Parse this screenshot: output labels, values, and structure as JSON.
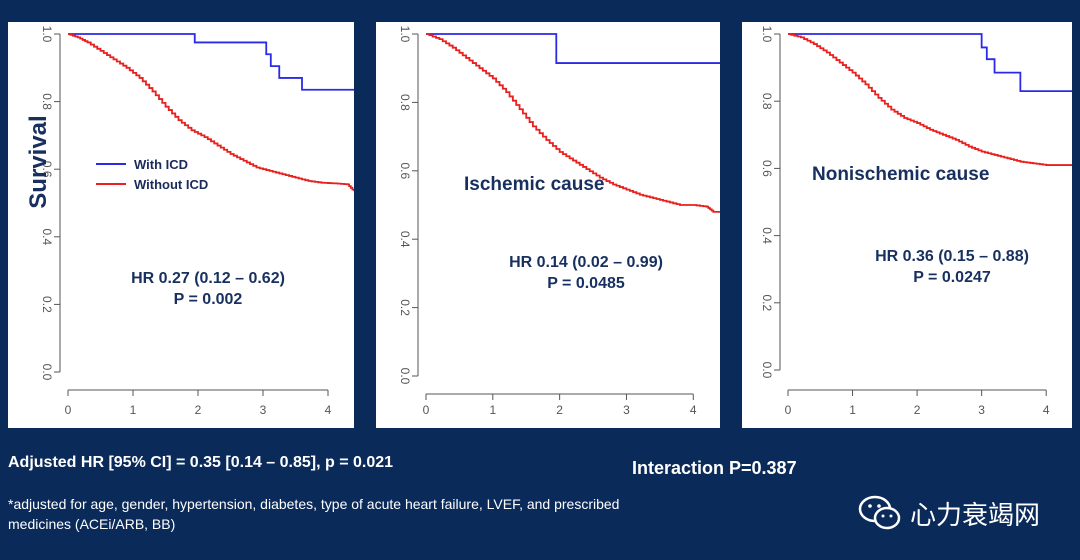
{
  "ylabel": "Survival",
  "legend": [
    {
      "label": "With ICD",
      "color": "#2a2ae8"
    },
    {
      "label": "Without ICD",
      "color": "#e8201e"
    }
  ],
  "chart_data": [
    {
      "type": "line",
      "title": "",
      "hr_line": "HR 0.27 (0.12 – 0.62)",
      "p_line": "P = 0.002",
      "x_ticks": [
        "0",
        "1",
        "2",
        "3",
        "4"
      ],
      "y_ticks": [
        "0.0",
        "0.2",
        "0.4",
        "0.6",
        "0.8",
        "1.0"
      ],
      "xlim": [
        0,
        4.4
      ],
      "ylim": [
        0,
        1.0
      ],
      "series": [
        {
          "name": "With ICD",
          "color": "#2a2ae8",
          "step": true,
          "x": [
            0,
            1.95,
            3.0,
            3.05,
            3.12,
            3.25,
            3.6,
            4.4
          ],
          "y": [
            1.0,
            0.975,
            0.975,
            0.94,
            0.905,
            0.87,
            0.835,
            0.835
          ]
        },
        {
          "name": "Without ICD",
          "color": "#e8201e",
          "step": false,
          "x": [
            0,
            0.15,
            0.3,
            0.5,
            0.7,
            0.9,
            1.1,
            1.3,
            1.5,
            1.7,
            1.9,
            2.1,
            2.3,
            2.5,
            2.7,
            2.9,
            3.1,
            3.3,
            3.5,
            3.7,
            3.9,
            4.1,
            4.3,
            4.4
          ],
          "y": [
            1.0,
            0.99,
            0.975,
            0.95,
            0.925,
            0.9,
            0.87,
            0.83,
            0.785,
            0.745,
            0.715,
            0.695,
            0.67,
            0.645,
            0.625,
            0.605,
            0.595,
            0.585,
            0.575,
            0.565,
            0.56,
            0.558,
            0.555,
            0.535
          ]
        }
      ]
    },
    {
      "type": "line",
      "title": "Ischemic cause",
      "hr_line": "HR 0.14 (0.02 – 0.99)",
      "p_line": "P = 0.0485",
      "x_ticks": [
        "0",
        "1",
        "2",
        "3",
        "4"
      ],
      "y_ticks": [
        "0.0",
        "0.2",
        "0.4",
        "0.6",
        "0.8",
        "1.0"
      ],
      "xlim": [
        0,
        4.4
      ],
      "ylim": [
        0,
        1.0
      ],
      "series": [
        {
          "name": "With ICD",
          "color": "#2a2ae8",
          "step": true,
          "x": [
            0,
            1.95,
            4.4
          ],
          "y": [
            1.0,
            0.915,
            0.915
          ]
        },
        {
          "name": "Without ICD",
          "color": "#e8201e",
          "step": false,
          "x": [
            0,
            0.2,
            0.4,
            0.6,
            0.8,
            1.0,
            1.2,
            1.4,
            1.6,
            1.8,
            2.0,
            2.2,
            2.4,
            2.6,
            2.8,
            3.0,
            3.2,
            3.4,
            3.6,
            3.8,
            4.0,
            4.2,
            4.3,
            4.4
          ],
          "y": [
            1.0,
            0.985,
            0.96,
            0.93,
            0.9,
            0.87,
            0.83,
            0.78,
            0.73,
            0.69,
            0.655,
            0.63,
            0.605,
            0.58,
            0.56,
            0.545,
            0.53,
            0.52,
            0.51,
            0.5,
            0.5,
            0.495,
            0.48,
            0.48
          ]
        }
      ]
    },
    {
      "type": "line",
      "title": "Nonischemic cause",
      "hr_line": "HR 0.36 (0.15 – 0.88)",
      "p_line": "P = 0.0247",
      "x_ticks": [
        "0",
        "1",
        "2",
        "3",
        "4"
      ],
      "y_ticks": [
        "0.0",
        "0.2",
        "0.4",
        "0.6",
        "0.8",
        "1.0"
      ],
      "xlim": [
        0,
        4.4
      ],
      "ylim": [
        0,
        1.0
      ],
      "series": [
        {
          "name": "With ICD",
          "color": "#2a2ae8",
          "step": true,
          "x": [
            0,
            2.95,
            3.0,
            3.08,
            3.2,
            3.6,
            4.4
          ],
          "y": [
            1.0,
            1.0,
            0.96,
            0.925,
            0.885,
            0.83,
            0.83
          ]
        },
        {
          "name": "Without ICD",
          "color": "#e8201e",
          "step": false,
          "x": [
            0,
            0.2,
            0.4,
            0.6,
            0.8,
            1.0,
            1.2,
            1.4,
            1.6,
            1.8,
            2.0,
            2.2,
            2.4,
            2.6,
            2.8,
            3.0,
            3.2,
            3.4,
            3.6,
            3.8,
            4.0,
            4.2,
            4.4
          ],
          "y": [
            1.0,
            0.99,
            0.97,
            0.945,
            0.915,
            0.885,
            0.85,
            0.81,
            0.775,
            0.75,
            0.735,
            0.715,
            0.7,
            0.685,
            0.665,
            0.65,
            0.64,
            0.63,
            0.62,
            0.615,
            0.61,
            0.61,
            0.61
          ]
        }
      ]
    }
  ],
  "footer": {
    "adjusted": "Adjusted HR [95% CI] = 0.35 [0.14 – 0.85], p = 0.021",
    "interaction": "Interaction P=0.387",
    "note": "*adjusted for age, gender, hypertension, diabetes, type of acute heart failure, LVEF, and prescribed medicines (ACEi/ARB, BB)"
  },
  "watermark": "心力衰竭网"
}
